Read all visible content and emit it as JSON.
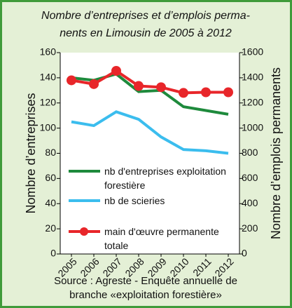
{
  "chart_data": {
    "type": "line",
    "title": [
      "Nombre d’entreprises et d’emplois perma-",
      "nents en Limousin de 2005 à 2012"
    ],
    "categories": [
      "2005",
      "2006",
      "2007",
      "2008",
      "2009",
      "2010",
      "2011",
      "2012"
    ],
    "series": [
      {
        "name": "nb d'entreprises exploitation forestière",
        "color": "#1e8a3c",
        "values": [
          140,
          138,
          143,
          129,
          130,
          117,
          114,
          111
        ]
      },
      {
        "name": "nb de scieries",
        "color": "#3bbdee",
        "values": [
          105,
          102,
          113,
          107,
          93,
          83,
          82,
          80
        ]
      },
      {
        "name": "main d'œuvre permanente totale",
        "color": "#e8262a",
        "axis": "y2",
        "markers": true,
        "values": [
          1380,
          1350,
          1455,
          1335,
          1325,
          1280,
          1285,
          1285
        ]
      }
    ],
    "ylabel": "Nombre d’entreprises",
    "y2label": "Nombre d’emplois permanents",
    "ylim": [
      0,
      160
    ],
    "yticks": [
      0,
      20,
      40,
      60,
      80,
      100,
      120,
      140,
      160
    ],
    "y2lim": [
      0,
      1600
    ],
    "y2ticks": [
      0,
      200,
      400,
      600,
      800,
      1000,
      1200,
      1400,
      1600
    ],
    "source": [
      "Source : Agreste - Enquête annuelle de",
      "branche «exploitation forestière»"
    ]
  }
}
